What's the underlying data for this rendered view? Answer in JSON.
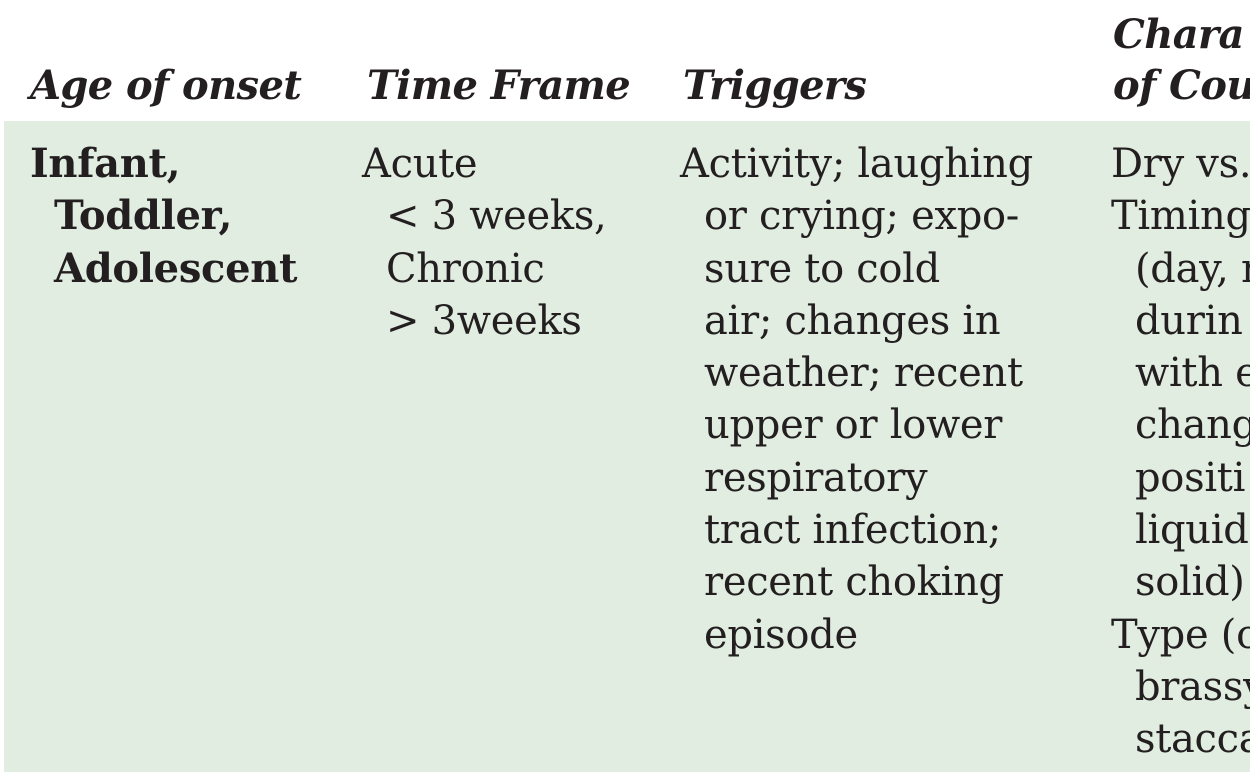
{
  "table": {
    "headers": {
      "age": "Age of onset",
      "time": "Time Frame",
      "triggers": "Triggers",
      "char_line1": "Chara",
      "char_line2": "of Cou"
    },
    "row": {
      "age": [
        "Infant,",
        "Toddler,",
        "Adolescent"
      ],
      "time": [
        "Acute",
        "< 3 weeks,",
        "Chronic",
        "> 3weeks"
      ],
      "triggers": [
        "Activity; laughing",
        "or crying; expo-",
        "sure to cold",
        "air; changes in",
        "weather; recent",
        "upper or lower",
        "respiratory",
        "tract infection;",
        "recent choking",
        "episode"
      ],
      "characteristics": [
        "Dry vs.",
        "Timing",
        "(day, r",
        "durin",
        "with e",
        "chang",
        "positi",
        "liquid",
        "solid)",
        "Type (c",
        "brassy",
        "stacca"
      ]
    }
  }
}
